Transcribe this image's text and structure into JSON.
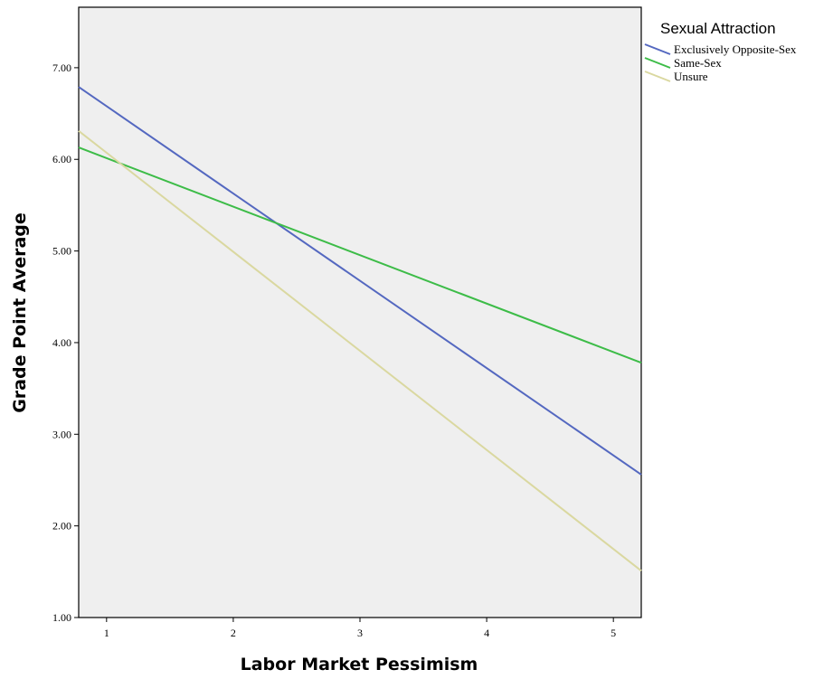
{
  "chart_data": {
    "type": "line",
    "xlabel": "Labor Market Pessimism",
    "ylabel": "Grade Point Average",
    "xlim": [
      0.78,
      5.22
    ],
    "ylim": [
      1.0,
      7.66
    ],
    "x_ticks": [
      1,
      2,
      3,
      4,
      5
    ],
    "x_tick_labels": [
      "1",
      "2",
      "3",
      "4",
      "5"
    ],
    "y_ticks": [
      1,
      2,
      3,
      4,
      5,
      6,
      7
    ],
    "y_tick_labels": [
      "1.00",
      "2.00",
      "3.00",
      "4.00",
      "5.00",
      "6.00",
      "7.00"
    ],
    "grid": false,
    "plot_background": "#efefef",
    "legend": {
      "title": "Sexual Attraction",
      "placement": "right-top, outside plot"
    },
    "series": [
      {
        "name": "Exclusively Opposite-Sex",
        "color": "#5468c0",
        "x": [
          0.78,
          5.22
        ],
        "y": [
          6.79,
          2.56
        ]
      },
      {
        "name": "Same-Sex",
        "color": "#3dbc48",
        "x": [
          0.78,
          5.22
        ],
        "y": [
          6.13,
          3.78
        ]
      },
      {
        "name": "Unsure",
        "color": "#dad8a0",
        "x": [
          0.78,
          5.22
        ],
        "y": [
          6.31,
          1.51
        ]
      }
    ]
  }
}
